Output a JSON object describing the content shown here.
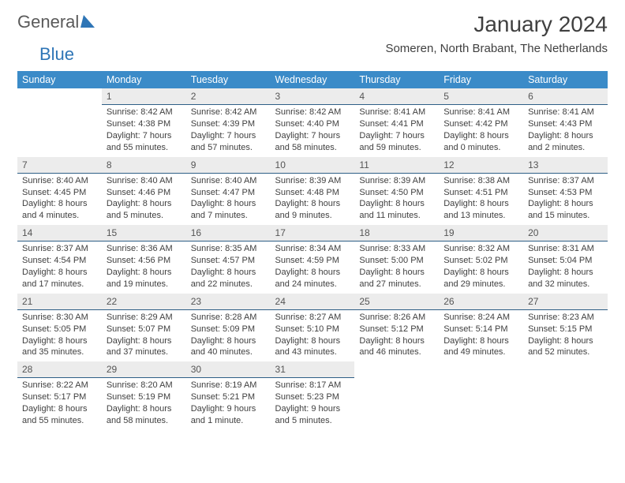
{
  "logo": {
    "word1": "General",
    "word2": "Blue"
  },
  "title": "January 2024",
  "location": "Someren, North Brabant, The Netherlands",
  "styling": {
    "header_bg": "#3b8bc8",
    "header_text": "#ffffff",
    "daynum_bg": "#ececec",
    "day_border": "#2e5f86",
    "body_text": "#404040",
    "page_bg": "#ffffff",
    "title_fontsize": 28,
    "location_fontsize": 15,
    "cell_fontsize": 11
  },
  "weekdays": [
    "Sunday",
    "Monday",
    "Tuesday",
    "Wednesday",
    "Thursday",
    "Friday",
    "Saturday"
  ],
  "weeks": [
    [
      {
        "n": "",
        "sr": "",
        "ss": "",
        "dl": "",
        "empty": true
      },
      {
        "n": "1",
        "sr": "Sunrise: 8:42 AM",
        "ss": "Sunset: 4:38 PM",
        "dl": "Daylight: 7 hours and 55 minutes."
      },
      {
        "n": "2",
        "sr": "Sunrise: 8:42 AM",
        "ss": "Sunset: 4:39 PM",
        "dl": "Daylight: 7 hours and 57 minutes."
      },
      {
        "n": "3",
        "sr": "Sunrise: 8:42 AM",
        "ss": "Sunset: 4:40 PM",
        "dl": "Daylight: 7 hours and 58 minutes."
      },
      {
        "n": "4",
        "sr": "Sunrise: 8:41 AM",
        "ss": "Sunset: 4:41 PM",
        "dl": "Daylight: 7 hours and 59 minutes."
      },
      {
        "n": "5",
        "sr": "Sunrise: 8:41 AM",
        "ss": "Sunset: 4:42 PM",
        "dl": "Daylight: 8 hours and 0 minutes."
      },
      {
        "n": "6",
        "sr": "Sunrise: 8:41 AM",
        "ss": "Sunset: 4:43 PM",
        "dl": "Daylight: 8 hours and 2 minutes."
      }
    ],
    [
      {
        "n": "7",
        "sr": "Sunrise: 8:40 AM",
        "ss": "Sunset: 4:45 PM",
        "dl": "Daylight: 8 hours and 4 minutes."
      },
      {
        "n": "8",
        "sr": "Sunrise: 8:40 AM",
        "ss": "Sunset: 4:46 PM",
        "dl": "Daylight: 8 hours and 5 minutes."
      },
      {
        "n": "9",
        "sr": "Sunrise: 8:40 AM",
        "ss": "Sunset: 4:47 PM",
        "dl": "Daylight: 8 hours and 7 minutes."
      },
      {
        "n": "10",
        "sr": "Sunrise: 8:39 AM",
        "ss": "Sunset: 4:48 PM",
        "dl": "Daylight: 8 hours and 9 minutes."
      },
      {
        "n": "11",
        "sr": "Sunrise: 8:39 AM",
        "ss": "Sunset: 4:50 PM",
        "dl": "Daylight: 8 hours and 11 minutes."
      },
      {
        "n": "12",
        "sr": "Sunrise: 8:38 AM",
        "ss": "Sunset: 4:51 PM",
        "dl": "Daylight: 8 hours and 13 minutes."
      },
      {
        "n": "13",
        "sr": "Sunrise: 8:37 AM",
        "ss": "Sunset: 4:53 PM",
        "dl": "Daylight: 8 hours and 15 minutes."
      }
    ],
    [
      {
        "n": "14",
        "sr": "Sunrise: 8:37 AM",
        "ss": "Sunset: 4:54 PM",
        "dl": "Daylight: 8 hours and 17 minutes."
      },
      {
        "n": "15",
        "sr": "Sunrise: 8:36 AM",
        "ss": "Sunset: 4:56 PM",
        "dl": "Daylight: 8 hours and 19 minutes."
      },
      {
        "n": "16",
        "sr": "Sunrise: 8:35 AM",
        "ss": "Sunset: 4:57 PM",
        "dl": "Daylight: 8 hours and 22 minutes."
      },
      {
        "n": "17",
        "sr": "Sunrise: 8:34 AM",
        "ss": "Sunset: 4:59 PM",
        "dl": "Daylight: 8 hours and 24 minutes."
      },
      {
        "n": "18",
        "sr": "Sunrise: 8:33 AM",
        "ss": "Sunset: 5:00 PM",
        "dl": "Daylight: 8 hours and 27 minutes."
      },
      {
        "n": "19",
        "sr": "Sunrise: 8:32 AM",
        "ss": "Sunset: 5:02 PM",
        "dl": "Daylight: 8 hours and 29 minutes."
      },
      {
        "n": "20",
        "sr": "Sunrise: 8:31 AM",
        "ss": "Sunset: 5:04 PM",
        "dl": "Daylight: 8 hours and 32 minutes."
      }
    ],
    [
      {
        "n": "21",
        "sr": "Sunrise: 8:30 AM",
        "ss": "Sunset: 5:05 PM",
        "dl": "Daylight: 8 hours and 35 minutes."
      },
      {
        "n": "22",
        "sr": "Sunrise: 8:29 AM",
        "ss": "Sunset: 5:07 PM",
        "dl": "Daylight: 8 hours and 37 minutes."
      },
      {
        "n": "23",
        "sr": "Sunrise: 8:28 AM",
        "ss": "Sunset: 5:09 PM",
        "dl": "Daylight: 8 hours and 40 minutes."
      },
      {
        "n": "24",
        "sr": "Sunrise: 8:27 AM",
        "ss": "Sunset: 5:10 PM",
        "dl": "Daylight: 8 hours and 43 minutes."
      },
      {
        "n": "25",
        "sr": "Sunrise: 8:26 AM",
        "ss": "Sunset: 5:12 PM",
        "dl": "Daylight: 8 hours and 46 minutes."
      },
      {
        "n": "26",
        "sr": "Sunrise: 8:24 AM",
        "ss": "Sunset: 5:14 PM",
        "dl": "Daylight: 8 hours and 49 minutes."
      },
      {
        "n": "27",
        "sr": "Sunrise: 8:23 AM",
        "ss": "Sunset: 5:15 PM",
        "dl": "Daylight: 8 hours and 52 minutes."
      }
    ],
    [
      {
        "n": "28",
        "sr": "Sunrise: 8:22 AM",
        "ss": "Sunset: 5:17 PM",
        "dl": "Daylight: 8 hours and 55 minutes."
      },
      {
        "n": "29",
        "sr": "Sunrise: 8:20 AM",
        "ss": "Sunset: 5:19 PM",
        "dl": "Daylight: 8 hours and 58 minutes."
      },
      {
        "n": "30",
        "sr": "Sunrise: 8:19 AM",
        "ss": "Sunset: 5:21 PM",
        "dl": "Daylight: 9 hours and 1 minute."
      },
      {
        "n": "31",
        "sr": "Sunrise: 8:17 AM",
        "ss": "Sunset: 5:23 PM",
        "dl": "Daylight: 9 hours and 5 minutes."
      },
      {
        "n": "",
        "sr": "",
        "ss": "",
        "dl": "",
        "empty": true
      },
      {
        "n": "",
        "sr": "",
        "ss": "",
        "dl": "",
        "empty": true
      },
      {
        "n": "",
        "sr": "",
        "ss": "",
        "dl": "",
        "empty": true
      }
    ]
  ]
}
